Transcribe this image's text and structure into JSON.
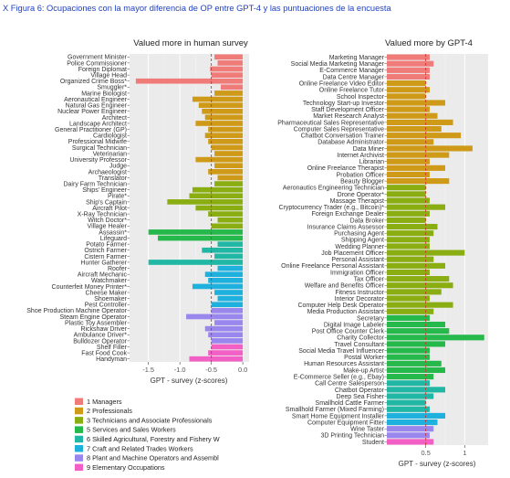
{
  "caption": "X Figura 6: Ocupaciones con la mayor diferencia de OP entre GPT-4 y las puntuaciones de la encuesta",
  "colors": {
    "1": "#f07c7a",
    "2": "#cf9a17",
    "3": "#8aae12",
    "5": "#25b84a",
    "6": "#20b7a4",
    "7": "#1fb1de",
    "8": "#9a87ee",
    "9": "#f25fc5"
  },
  "legend": [
    {
      "group": "1",
      "label": "1 Managers"
    },
    {
      "group": "2",
      "label": "2 Professionals"
    },
    {
      "group": "3",
      "label": "3 Technicians and Associate Professionals"
    },
    {
      "group": "5",
      "label": "5 Services and Sales Workers"
    },
    {
      "group": "6",
      "label": "6 Skilled Agricultural, Forestry and Fishery W"
    },
    {
      "group": "7",
      "label": "7 Craft and Related Trades Workers"
    },
    {
      "group": "8",
      "label": "8 Plant and Machine Operators and Assembl"
    },
    {
      "group": "9",
      "label": "9 Elementary Occupations"
    }
  ],
  "chart_data": [
    {
      "type": "bar",
      "title": "Valued more in human survey",
      "xlabel": "GPT - survey (z-scores)",
      "xlim": [
        -1.8,
        0.1
      ],
      "xticks": [
        -1.5,
        -1.0,
        -0.5,
        0.0
      ],
      "xtick_labels": [
        "-1.5",
        "-1.0",
        "-0.5",
        "0.0"
      ],
      "reference_line": -0.5,
      "bars": [
        {
          "label": "Government Minister",
          "value": -0.45,
          "group": "1"
        },
        {
          "label": "Police Commissioner",
          "value": -0.4,
          "group": "1"
        },
        {
          "label": "Foreign Diplomat",
          "value": -0.52,
          "group": "1"
        },
        {
          "label": "Village Head",
          "value": -0.5,
          "group": "1"
        },
        {
          "label": "Organized Crime Boss*",
          "value": -1.7,
          "group": "1"
        },
        {
          "label": "Smuggler*",
          "value": -0.35,
          "group": "1"
        },
        {
          "label": "Marine Biologist",
          "value": -0.45,
          "group": "2"
        },
        {
          "label": "Aeronautical Engineer",
          "value": -0.8,
          "group": "2"
        },
        {
          "label": "Natural Gas Engineer",
          "value": -0.7,
          "group": "2"
        },
        {
          "label": "Nuclear Power Engineer",
          "value": -0.65,
          "group": "2"
        },
        {
          "label": "Architect",
          "value": -0.6,
          "group": "2"
        },
        {
          "label": "Landscape Architect",
          "value": -0.75,
          "group": "2"
        },
        {
          "label": "General Practitioner (GP)",
          "value": -0.55,
          "group": "2"
        },
        {
          "label": "Cardiologist",
          "value": -0.6,
          "group": "2"
        },
        {
          "label": "Professional Midwife",
          "value": -0.55,
          "group": "2"
        },
        {
          "label": "Surgical Technician",
          "value": -0.5,
          "group": "2"
        },
        {
          "label": "Veterinarian",
          "value": -0.45,
          "group": "2"
        },
        {
          "label": "University Professor",
          "value": -0.75,
          "group": "2"
        },
        {
          "label": "Judge",
          "value": -0.45,
          "group": "2"
        },
        {
          "label": "Archaeologist",
          "value": -0.55,
          "group": "2"
        },
        {
          "label": "Translator",
          "value": -0.4,
          "group": "2"
        },
        {
          "label": "Dairy Farm Technician",
          "value": -0.45,
          "group": "3"
        },
        {
          "label": "Ships' Engineer",
          "value": -0.8,
          "group": "3"
        },
        {
          "label": "Pirate*",
          "value": -0.85,
          "group": "3"
        },
        {
          "label": "Ship's Captain",
          "value": -1.2,
          "group": "3"
        },
        {
          "label": "Aircraft Pilot",
          "value": -0.75,
          "group": "3"
        },
        {
          "label": "X-Ray Technician",
          "value": -0.55,
          "group": "3"
        },
        {
          "label": "Witch Doctor*",
          "value": -0.4,
          "group": "3"
        },
        {
          "label": "Village Healer",
          "value": -0.5,
          "group": "3"
        },
        {
          "label": "Assassin*",
          "value": -1.5,
          "group": "5"
        },
        {
          "label": "Lifeguard",
          "value": -1.35,
          "group": "5"
        },
        {
          "label": "Potato Farmer",
          "value": -0.4,
          "group": "6"
        },
        {
          "label": "Ostrich Farmer",
          "value": -0.65,
          "group": "6"
        },
        {
          "label": "Cistern Farmer",
          "value": -0.45,
          "group": "6"
        },
        {
          "label": "Hunter Gatherer",
          "value": -1.5,
          "group": "6"
        },
        {
          "label": "Roofer",
          "value": -0.4,
          "group": "7"
        },
        {
          "label": "Aircraft Mechanic",
          "value": -0.6,
          "group": "7"
        },
        {
          "label": "Watchmaker",
          "value": -0.55,
          "group": "7"
        },
        {
          "label": "Counterfeit Money Printer*",
          "value": -0.8,
          "group": "7"
        },
        {
          "label": "Cheese Maker",
          "value": -0.45,
          "group": "7"
        },
        {
          "label": "Shoemaker",
          "value": -0.4,
          "group": "7"
        },
        {
          "label": "Pest Controller",
          "value": -0.5,
          "group": "7"
        },
        {
          "label": "Shoe Production Machine Operator",
          "value": -0.5,
          "group": "8"
        },
        {
          "label": "Steam Engine Operator",
          "value": -0.9,
          "group": "8"
        },
        {
          "label": "Plastic Toy Assembler",
          "value": -0.45,
          "group": "8"
        },
        {
          "label": "Rickshaw Driver",
          "value": -0.6,
          "group": "8"
        },
        {
          "label": "Ambulance Driver*",
          "value": -0.55,
          "group": "8"
        },
        {
          "label": "Bulldozer Operator",
          "value": -0.5,
          "group": "8"
        },
        {
          "label": "Shelf Filler",
          "value": -0.5,
          "group": "9"
        },
        {
          "label": "Fast Food Cook",
          "value": -0.55,
          "group": "9"
        },
        {
          "label": "Handyman",
          "value": -0.85,
          "group": "9"
        }
      ]
    },
    {
      "type": "bar",
      "title": "Valued more by GPT-4",
      "xlabel": "GPT - survey (z-scores)",
      "xlim": [
        0,
        1.3
      ],
      "xticks": [
        0.5,
        1.0
      ],
      "xtick_labels": [
        "0.5",
        "1"
      ],
      "reference_line": 0.5,
      "bars": [
        {
          "label": "Marketing Manager",
          "value": 0.55,
          "group": "1"
        },
        {
          "label": "Social Media Marketing Manager",
          "value": 0.6,
          "group": "1"
        },
        {
          "label": "E-Commerce Manager",
          "value": 0.55,
          "group": "1"
        },
        {
          "label": "Data Centre Manager",
          "value": 0.55,
          "group": "1"
        },
        {
          "label": "Online Freelance Video Editor",
          "value": 0.5,
          "group": "2"
        },
        {
          "label": "Online Freelance Tutor",
          "value": 0.55,
          "group": "2"
        },
        {
          "label": "School Inspector",
          "value": 0.5,
          "group": "2"
        },
        {
          "label": "Technology Start-up Investor",
          "value": 0.75,
          "group": "2"
        },
        {
          "label": "Staff Development Officer",
          "value": 0.55,
          "group": "2"
        },
        {
          "label": "Market Research Analyst",
          "value": 0.65,
          "group": "2"
        },
        {
          "label": "Pharmaceutical Sales Representative",
          "value": 0.85,
          "group": "2"
        },
        {
          "label": "Computer Sales Representative",
          "value": 0.7,
          "group": "2"
        },
        {
          "label": "Chatbot Conversation Trainer",
          "value": 0.95,
          "group": "2"
        },
        {
          "label": "Database Administrator",
          "value": 0.6,
          "group": "2"
        },
        {
          "label": "Data Miner",
          "value": 1.1,
          "group": "2"
        },
        {
          "label": "Internet Archivist",
          "value": 0.8,
          "group": "2"
        },
        {
          "label": "Librarian",
          "value": 0.55,
          "group": "2"
        },
        {
          "label": "Online Freelance Therapist",
          "value": 0.75,
          "group": "2"
        },
        {
          "label": "Probation Officer",
          "value": 0.55,
          "group": "2"
        },
        {
          "label": "Beauty Blogger",
          "value": 0.8,
          "group": "2"
        },
        {
          "label": "Aeronautics Engineering Technician",
          "value": 0.5,
          "group": "3"
        },
        {
          "label": "Drone Operator*",
          "value": 0.5,
          "group": "3"
        },
        {
          "label": "Massage Therapist",
          "value": 0.55,
          "group": "3"
        },
        {
          "label": "Cryptocurrency Trader (e.g., Bitcoin)*",
          "value": 0.75,
          "group": "3"
        },
        {
          "label": "Foreign Exchange Dealer",
          "value": 0.55,
          "group": "3"
        },
        {
          "label": "Data Broker",
          "value": 0.5,
          "group": "3"
        },
        {
          "label": "Insurance Claims Assessor",
          "value": 0.65,
          "group": "3"
        },
        {
          "label": "Purchasing Agent",
          "value": 0.6,
          "group": "3"
        },
        {
          "label": "Shipping Agent",
          "value": 0.55,
          "group": "3"
        },
        {
          "label": "Wedding Planner",
          "value": 0.55,
          "group": "3"
        },
        {
          "label": "Job Placement Officer",
          "value": 1.0,
          "group": "3"
        },
        {
          "label": "Personal Assistant",
          "value": 0.6,
          "group": "3"
        },
        {
          "label": "Online Freelance Personal Assistant",
          "value": 0.75,
          "group": "3"
        },
        {
          "label": "Immigration Officer",
          "value": 0.55,
          "group": "3"
        },
        {
          "label": "Tax Officer",
          "value": 0.8,
          "group": "3"
        },
        {
          "label": "Welfare and Benefits Officer",
          "value": 0.85,
          "group": "3"
        },
        {
          "label": "Fitness Instructor",
          "value": 0.7,
          "group": "3"
        },
        {
          "label": "Interior Decorator",
          "value": 0.55,
          "group": "3"
        },
        {
          "label": "Computer Help Desk Operator",
          "value": 0.85,
          "group": "3"
        },
        {
          "label": "Media Production Assistant",
          "value": 0.6,
          "group": "3"
        },
        {
          "label": "Secretary",
          "value": 0.55,
          "group": "5"
        },
        {
          "label": "Digital Image Labeler",
          "value": 0.75,
          "group": "5"
        },
        {
          "label": "Post Office Counter Clerk",
          "value": 0.8,
          "group": "5"
        },
        {
          "label": "Charity Collector",
          "value": 1.25,
          "group": "5"
        },
        {
          "label": "Travel Consultant",
          "value": 0.75,
          "group": "5"
        },
        {
          "label": "Social Media Travel Influencer",
          "value": 0.55,
          "group": "5"
        },
        {
          "label": "Postal Worker",
          "value": 0.55,
          "group": "5"
        },
        {
          "label": "Human Resources Assistant",
          "value": 0.7,
          "group": "5"
        },
        {
          "label": "Make-up Artist",
          "value": 0.75,
          "group": "5"
        },
        {
          "label": "E-Commerce Seller (e.g., Ebay)",
          "value": 0.6,
          "group": "5"
        },
        {
          "label": "Call Centre Salesperson",
          "value": 0.55,
          "group": "6"
        },
        {
          "label": "Chatbot Operator",
          "value": 0.75,
          "group": "6"
        },
        {
          "label": "Deep Sea Fisher",
          "value": 0.6,
          "group": "6"
        },
        {
          "label": "Smallhold Cattle Farmer",
          "value": 0.5,
          "group": "6"
        },
        {
          "label": "Smallhold Farmer (Mixed Farming)",
          "value": 0.55,
          "group": "6"
        },
        {
          "label": "Smart Home Equipment Installer",
          "value": 0.75,
          "group": "7"
        },
        {
          "label": "Computer Equipment Fitter",
          "value": 0.65,
          "group": "7"
        },
        {
          "label": "Wine Taster",
          "value": 0.6,
          "group": "8"
        },
        {
          "label": "3D Printing Technician",
          "value": 0.55,
          "group": "8"
        },
        {
          "label": "Student",
          "value": 0.6,
          "group": "9"
        }
      ]
    }
  ]
}
